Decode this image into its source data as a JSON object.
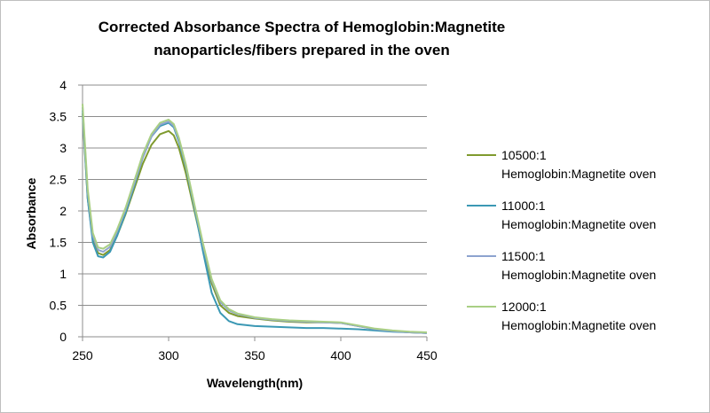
{
  "chart_data": {
    "type": "line",
    "title_line1": "Corrected Absorbance Spectra of Hemoglobin:Magnetite",
    "title_line2": "nanoparticles/fibers prepared in the oven",
    "xlabel": "Wavelength(nm)",
    "ylabel": "Absorbance",
    "xlim": [
      250,
      450
    ],
    "ylim": [
      0,
      4
    ],
    "x_ticks": [
      "250",
      "300",
      "350",
      "400",
      "450"
    ],
    "y_ticks": [
      "0",
      "0.5",
      "1",
      "1.5",
      "2",
      "2.5",
      "3",
      "3.5",
      "4"
    ],
    "grid": "horizontal",
    "legend_position": "right",
    "series": [
      {
        "name_line1": "10500:1",
        "name_line2": "Hemoglobin:Magnetite oven",
        "color": "#7f9a2e",
        "x": [
          250,
          253,
          256,
          259,
          262,
          266,
          270,
          275,
          280,
          285,
          290,
          295,
          300,
          303,
          306,
          310,
          315,
          320,
          325,
          330,
          335,
          340,
          350,
          360,
          370,
          380,
          390,
          400,
          410,
          420,
          430,
          440,
          450
        ],
        "y": [
          3.55,
          2.2,
          1.55,
          1.33,
          1.3,
          1.38,
          1.6,
          1.95,
          2.35,
          2.75,
          3.05,
          3.22,
          3.27,
          3.2,
          3.0,
          2.6,
          2.0,
          1.4,
          0.85,
          0.5,
          0.38,
          0.33,
          0.29,
          0.26,
          0.24,
          0.23,
          0.23,
          0.22,
          0.17,
          0.12,
          0.09,
          0.07,
          0.06
        ]
      },
      {
        "name_line1": "11000:1",
        "name_line2": "Hemoglobin:Magnetite oven",
        "color": "#3b98b4",
        "x": [
          250,
          253,
          256,
          259,
          262,
          266,
          270,
          275,
          280,
          285,
          290,
          295,
          300,
          303,
          306,
          310,
          315,
          320,
          325,
          330,
          335,
          340,
          350,
          360,
          370,
          380,
          390,
          400,
          410,
          420,
          430,
          440,
          450
        ],
        "y": [
          3.6,
          2.2,
          1.5,
          1.28,
          1.26,
          1.35,
          1.6,
          1.97,
          2.4,
          2.85,
          3.18,
          3.35,
          3.4,
          3.33,
          3.1,
          2.7,
          2.05,
          1.35,
          0.7,
          0.38,
          0.25,
          0.2,
          0.17,
          0.16,
          0.15,
          0.14,
          0.14,
          0.13,
          0.12,
          0.1,
          0.08,
          0.07,
          0.06
        ]
      },
      {
        "name_line1": "11500:1",
        "name_line2": "Hemoglobin:Magnetite oven",
        "color": "#8da3cf",
        "x": [
          250,
          253,
          256,
          259,
          262,
          266,
          270,
          275,
          280,
          285,
          290,
          295,
          300,
          303,
          306,
          310,
          315,
          320,
          325,
          330,
          335,
          340,
          350,
          360,
          370,
          380,
          390,
          400,
          410,
          420,
          430,
          440,
          450
        ],
        "y": [
          3.65,
          2.3,
          1.6,
          1.38,
          1.35,
          1.43,
          1.67,
          2.02,
          2.43,
          2.85,
          3.18,
          3.37,
          3.42,
          3.35,
          3.13,
          2.72,
          2.08,
          1.45,
          0.9,
          0.55,
          0.42,
          0.36,
          0.3,
          0.27,
          0.25,
          0.24,
          0.23,
          0.22,
          0.17,
          0.12,
          0.09,
          0.07,
          0.06
        ]
      },
      {
        "name_line1": "12000:1",
        "name_line2": "Hemoglobin:Magnetite oven",
        "color": "#a9cf84",
        "x": [
          250,
          253,
          256,
          259,
          262,
          266,
          270,
          275,
          280,
          285,
          290,
          295,
          300,
          303,
          306,
          310,
          315,
          320,
          325,
          330,
          335,
          340,
          350,
          360,
          370,
          380,
          390,
          400,
          410,
          420,
          430,
          440,
          450
        ],
        "y": [
          3.7,
          2.35,
          1.65,
          1.42,
          1.4,
          1.47,
          1.7,
          2.05,
          2.47,
          2.9,
          3.22,
          3.4,
          3.45,
          3.38,
          3.16,
          2.74,
          2.1,
          1.48,
          0.92,
          0.58,
          0.44,
          0.37,
          0.31,
          0.28,
          0.26,
          0.25,
          0.24,
          0.23,
          0.18,
          0.13,
          0.1,
          0.08,
          0.07
        ]
      }
    ]
  }
}
